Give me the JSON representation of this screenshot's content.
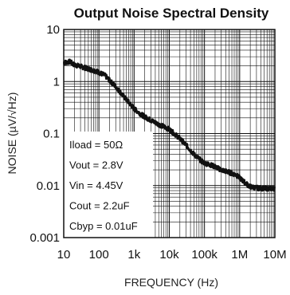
{
  "chart_data": {
    "type": "line",
    "title": "Output Noise Spectral Density",
    "xlabel": "FREQUENCY (Hz)",
    "ylabel": "NOISE (µV/√Hz)",
    "x_scale": "log",
    "y_scale": "log",
    "xlim": [
      10,
      10000000
    ],
    "ylim": [
      0.001,
      10
    ],
    "x_ticks": [
      10,
      100,
      1000,
      10000,
      100000,
      1000000,
      10000000
    ],
    "x_tick_labels": [
      "10",
      "100",
      "1k",
      "10k",
      "100k",
      "1M",
      "10M"
    ],
    "y_ticks": [
      0.001,
      0.01,
      0.1,
      1,
      10
    ],
    "y_tick_labels": [
      "0.001",
      "0.01",
      "0.1",
      "1",
      "10"
    ],
    "grid": true,
    "annotations": [
      "Iload = 50Ω",
      "Vout = 2.8V",
      "Vin = 4.45V",
      "Cout = 2.2uF",
      "Cbyp = 0.01uF"
    ],
    "series": [
      {
        "color": "#111111",
        "x": [
          10,
          15,
          20,
          30,
          50,
          80,
          100,
          150,
          200,
          300,
          500,
          800,
          1000,
          1500,
          2000,
          3000,
          5000,
          8000,
          10000,
          15000,
          20000,
          30000,
          50000,
          80000,
          100000,
          150000,
          200000,
          300000,
          500000,
          800000,
          1000000,
          1500000,
          2000000,
          3000000,
          5000000,
          8000000,
          10000000
        ],
        "y": [
          2.3,
          2.4,
          2.1,
          1.95,
          1.75,
          1.6,
          1.5,
          1.3,
          1.05,
          0.8,
          0.52,
          0.36,
          0.3,
          0.24,
          0.21,
          0.18,
          0.15,
          0.13,
          0.12,
          0.095,
          0.08,
          0.06,
          0.04,
          0.03,
          0.027,
          0.025,
          0.023,
          0.02,
          0.018,
          0.016,
          0.014,
          0.011,
          0.0095,
          0.009,
          0.0088,
          0.0088,
          0.0088
        ]
      }
    ]
  }
}
